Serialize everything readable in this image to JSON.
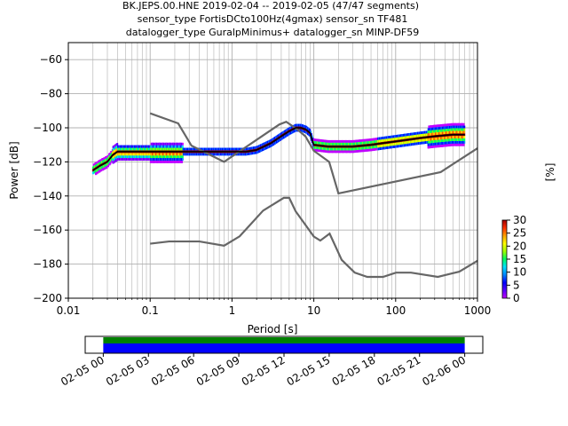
{
  "chart_data": [
    {
      "type": "heatmap",
      "subtype": "probabilistic-power-spectral-density",
      "title_lines": [
        "BK.JEPS.00.HNE   2019-02-04 -- 2019-02-05  (47/47 segments)",
        "sensor_type FortisDCto100Hz(4gmax) sensor_sn TF481",
        "datalogger_type GuralpMinimus+ datalogger_sn MINP-DF59"
      ],
      "xlabel": "Period [s]",
      "ylabel": "Power [dB]",
      "xscale": "log",
      "xlim": [
        0.01,
        1000
      ],
      "ylim": [
        -200,
        -50
      ],
      "xticks": [
        0.01,
        0.1,
        1,
        10,
        100,
        1000
      ],
      "xtick_labels": [
        "0.01",
        "0.1",
        "1",
        "10",
        "100",
        "1000"
      ],
      "yticks": [
        -200,
        -180,
        -160,
        -140,
        -120,
        -100,
        -80,
        -60
      ],
      "ytick_labels": [
        "−200",
        "−180",
        "−160",
        "−140",
        "−120",
        "−100",
        "−80",
        "−60"
      ],
      "grid": true,
      "colorbar": {
        "label": "[%]",
        "range": [
          0,
          30
        ],
        "ticks": [
          0,
          5,
          10,
          15,
          20,
          25,
          30
        ],
        "tick_labels": [
          "0",
          "5",
          "10",
          "15",
          "20",
          "25",
          "30"
        ],
        "colors": [
          "#ffffff",
          "#c000ff",
          "#5a00ff",
          "#0000ff",
          "#0088ff",
          "#00e0ff",
          "#00ff60",
          "#a0ff00",
          "#ffff00",
          "#ffa000",
          "#ff3000",
          "#a00000"
        ]
      },
      "mean_curve": {
        "period": [
          0.02,
          0.025,
          0.03,
          0.035,
          0.04,
          0.06,
          0.1,
          0.2,
          0.5,
          1,
          1.5,
          2,
          3,
          4,
          5,
          6,
          7,
          8,
          9,
          10,
          15,
          20,
          30,
          50,
          70,
          100,
          200,
          300,
          500,
          700
        ],
        "power": [
          -125,
          -122,
          -120,
          -116,
          -114,
          -114,
          -114,
          -114,
          -114,
          -114,
          -114,
          -113,
          -109,
          -105,
          -102,
          -100,
          -100,
          -101,
          -103,
          -110,
          -111,
          -111,
          -111,
          -110,
          -109,
          -108,
          -106,
          -105,
          -104,
          -104
        ]
      },
      "high_noise_model": {
        "period": [
          0.1,
          0.22,
          0.32,
          0.8,
          3.8,
          4.6,
          6.3,
          7.9,
          10,
          15.4,
          20,
          354.8,
          1000
        ],
        "power": [
          -91.5,
          -97.4,
          -110.5,
          -120,
          -98,
          -96.5,
          -101,
          -105,
          -113.5,
          -120,
          -138.5,
          -126,
          -112
        ]
      },
      "low_noise_model": {
        "period": [
          0.1,
          0.17,
          0.4,
          0.8,
          1.24,
          2.4,
          4.3,
          5,
          6,
          10,
          12,
          15.6,
          21.9,
          31.6,
          45,
          70,
          101,
          154,
          328,
          600,
          1000
        ],
        "power": [
          -168,
          -166.7,
          -166.7,
          -169.2,
          -163.7,
          -148.6,
          -141.1,
          -141.1,
          -149,
          -163.8,
          -166.2,
          -162.1,
          -177.5,
          -185,
          -187.5,
          -187.5,
          -185,
          -185,
          -187.5,
          -184.4,
          -178
        ]
      }
    },
    {
      "type": "timeline",
      "tick_labels": [
        "02-05 00",
        "02-05 03",
        "02-05 06",
        "02-05 09",
        "02-05 12",
        "02-05 15",
        "02-05 18",
        "02-05 21",
        "02-06 00"
      ],
      "tick_hours": [
        0,
        3,
        6,
        9,
        12,
        15,
        18,
        21,
        24
      ],
      "xlim_hours": [
        -1.2,
        25.2
      ],
      "coverage_hours": [
        0,
        24
      ],
      "bar_colors": [
        "#008000",
        "#0000ff"
      ]
    }
  ]
}
